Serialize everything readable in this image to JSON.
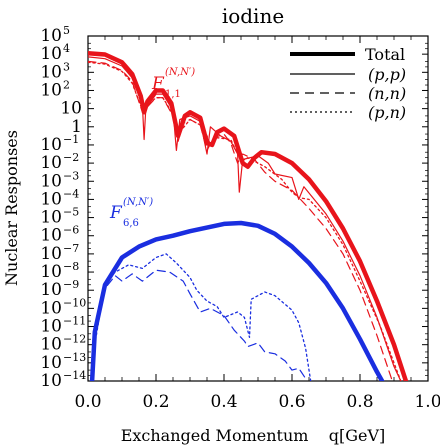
{
  "chart_data": {
    "type": "line",
    "title": "iodine",
    "xlabel": "Exchanged Momentum    q[GeV]",
    "ylabel": "Nuclear Responses",
    "xlim": [
      0.0,
      1.0
    ],
    "ylim_log10": [
      -14,
      5
    ],
    "y_scale": "log",
    "x_ticks": [
      "0.0",
      "0.2",
      "0.4",
      "0.6",
      "0.8",
      "1.0"
    ],
    "y_ticks": [
      {
        "base": "10",
        "exp": "5"
      },
      {
        "base": "10",
        "exp": "4"
      },
      {
        "base": "10",
        "exp": "3"
      },
      {
        "base": "10",
        "exp": "2"
      },
      {
        "base": "10",
        "exp": ""
      },
      {
        "base": "1",
        "exp": ""
      },
      {
        "base": "10",
        "exp": "−1"
      },
      {
        "base": "10",
        "exp": "−2"
      },
      {
        "base": "10",
        "exp": "−3"
      },
      {
        "base": "10",
        "exp": "−4"
      },
      {
        "base": "10",
        "exp": "−5"
      },
      {
        "base": "10",
        "exp": "−6"
      },
      {
        "base": "10",
        "exp": "−7"
      },
      {
        "base": "10",
        "exp": "−8"
      },
      {
        "base": "10",
        "exp": "−9"
      },
      {
        "base": "10",
        "exp": "−10"
      },
      {
        "base": "10",
        "exp": "−11"
      },
      {
        "base": "10",
        "exp": "−12"
      },
      {
        "base": "10",
        "exp": "−13"
      },
      {
        "base": "10",
        "exp": "−14"
      }
    ],
    "legend": {
      "position": "top-right",
      "entries": [
        {
          "label": "Total",
          "style": "solid-thick"
        },
        {
          "label": "(p,p)",
          "style": "solid-thin"
        },
        {
          "label": "(n,n)",
          "style": "dashed"
        },
        {
          "label": "(p,n)",
          "style": "dotted"
        }
      ]
    },
    "annotations": [
      {
        "main": "F",
        "sub": "1,1",
        "sup": "(N,N′)",
        "color": "#e8141b"
      },
      {
        "main": "F",
        "sub": "6,6",
        "sup": "(N,N′)",
        "color": "#1a2ee0"
      }
    ],
    "colors": {
      "F11": "#e8141b",
      "F66": "#1a2ee0",
      "legend": "#000000"
    },
    "series": [
      {
        "group": "F11",
        "style": "solid-thick",
        "points_log10": [
          [
            0.0,
            4.05
          ],
          [
            0.05,
            3.98
          ],
          [
            0.1,
            3.55
          ],
          [
            0.13,
            2.9
          ],
          [
            0.155,
            1.7
          ],
          [
            0.165,
            0.8
          ],
          [
            0.175,
            1.4
          ],
          [
            0.2,
            2.0
          ],
          [
            0.22,
            2.0
          ],
          [
            0.245,
            1.3
          ],
          [
            0.265,
            -0.5
          ],
          [
            0.285,
            0.6
          ],
          [
            0.3,
            0.8
          ],
          [
            0.33,
            0.5
          ],
          [
            0.35,
            -0.9
          ],
          [
            0.365,
            -1.0
          ],
          [
            0.38,
            -0.3
          ],
          [
            0.4,
            -0.1
          ],
          [
            0.43,
            -0.5
          ],
          [
            0.455,
            -2.0
          ],
          [
            0.47,
            -2.2
          ],
          [
            0.49,
            -1.7
          ],
          [
            0.51,
            -1.4
          ],
          [
            0.55,
            -1.5
          ],
          [
            0.6,
            -2.0
          ],
          [
            0.65,
            -2.9
          ],
          [
            0.7,
            -4.1
          ],
          [
            0.75,
            -5.6
          ],
          [
            0.8,
            -7.4
          ],
          [
            0.85,
            -9.6
          ],
          [
            0.9,
            -12.0
          ],
          [
            0.935,
            -14.0
          ]
        ]
      },
      {
        "group": "F11",
        "style": "solid-thin",
        "points_log10": [
          [
            0.0,
            3.85
          ],
          [
            0.05,
            3.75
          ],
          [
            0.1,
            3.35
          ],
          [
            0.13,
            2.7
          ],
          [
            0.16,
            1.2
          ],
          [
            0.165,
            -0.7
          ],
          [
            0.17,
            1.0
          ],
          [
            0.2,
            1.8
          ],
          [
            0.22,
            1.8
          ],
          [
            0.25,
            0.9
          ],
          [
            0.26,
            -1.3
          ],
          [
            0.27,
            0.4
          ],
          [
            0.3,
            0.6
          ],
          [
            0.33,
            0.3
          ],
          [
            0.35,
            -1.5
          ],
          [
            0.36,
            0.0
          ],
          [
            0.39,
            -0.5
          ],
          [
            0.42,
            -0.8
          ],
          [
            0.44,
            -1.5
          ],
          [
            0.445,
            -3.6
          ],
          [
            0.455,
            -1.8
          ],
          [
            0.5,
            -1.6
          ],
          [
            0.53,
            -2.0
          ],
          [
            0.55,
            -2.6
          ],
          [
            0.6,
            -2.8
          ],
          [
            0.62,
            -4.0
          ],
          [
            0.635,
            -3.3
          ],
          [
            0.7,
            -4.8
          ],
          [
            0.75,
            -6.3
          ],
          [
            0.8,
            -8.2
          ],
          [
            0.85,
            -10.5
          ],
          [
            0.9,
            -13.2
          ],
          [
            0.92,
            -14.0
          ]
        ]
      },
      {
        "group": "F11",
        "style": "dashed",
        "points_log10": [
          [
            0.0,
            3.6
          ],
          [
            0.05,
            3.5
          ],
          [
            0.1,
            3.1
          ],
          [
            0.13,
            2.5
          ],
          [
            0.16,
            0.8
          ],
          [
            0.17,
            1.0
          ],
          [
            0.2,
            1.6
          ],
          [
            0.22,
            1.6
          ],
          [
            0.25,
            0.6
          ],
          [
            0.265,
            -0.8
          ],
          [
            0.28,
            0.2
          ],
          [
            0.3,
            0.4
          ],
          [
            0.33,
            0.1
          ],
          [
            0.35,
            -1.3
          ],
          [
            0.37,
            -0.6
          ],
          [
            0.4,
            -0.4
          ],
          [
            0.42,
            -0.9
          ],
          [
            0.44,
            -2.0
          ],
          [
            0.455,
            -1.5
          ],
          [
            0.49,
            -1.8
          ],
          [
            0.52,
            -2.5
          ],
          [
            0.55,
            -3.0
          ],
          [
            0.6,
            -3.5
          ],
          [
            0.65,
            -4.5
          ],
          [
            0.7,
            -5.6
          ],
          [
            0.75,
            -7.0
          ],
          [
            0.8,
            -9.0
          ],
          [
            0.85,
            -11.5
          ],
          [
            0.895,
            -14.0
          ]
        ]
      },
      {
        "group": "F11",
        "style": "dotted",
        "points_log10": [
          [
            0.0,
            3.55
          ],
          [
            0.05,
            3.45
          ],
          [
            0.1,
            3.05
          ],
          [
            0.13,
            2.4
          ],
          [
            0.16,
            0.9
          ],
          [
            0.17,
            1.1
          ],
          [
            0.2,
            1.6
          ],
          [
            0.22,
            1.6
          ],
          [
            0.25,
            0.7
          ],
          [
            0.27,
            -0.3
          ],
          [
            0.3,
            0.4
          ],
          [
            0.34,
            0.0
          ],
          [
            0.36,
            -1.0
          ],
          [
            0.38,
            -0.6
          ],
          [
            0.42,
            -0.7
          ],
          [
            0.45,
            -1.9
          ],
          [
            0.47,
            -1.7
          ],
          [
            0.52,
            -2.2
          ],
          [
            0.57,
            -2.9
          ],
          [
            0.6,
            -3.6
          ],
          [
            0.62,
            -3.9
          ],
          [
            0.65,
            -4.0
          ],
          [
            0.7,
            -5.0
          ],
          [
            0.75,
            -6.5
          ],
          [
            0.8,
            -8.5
          ],
          [
            0.86,
            -11.0
          ],
          [
            0.92,
            -14.0
          ]
        ]
      },
      {
        "group": "F66",
        "style": "solid-thick",
        "points_log10": [
          [
            0.012,
            -14.0
          ],
          [
            0.02,
            -11.3
          ],
          [
            0.05,
            -8.7
          ],
          [
            0.1,
            -7.2
          ],
          [
            0.15,
            -6.6
          ],
          [
            0.2,
            -6.2
          ],
          [
            0.25,
            -6.0
          ],
          [
            0.3,
            -5.75
          ],
          [
            0.35,
            -5.55
          ],
          [
            0.4,
            -5.35
          ],
          [
            0.45,
            -5.3
          ],
          [
            0.5,
            -5.45
          ],
          [
            0.55,
            -5.9
          ],
          [
            0.6,
            -6.6
          ],
          [
            0.65,
            -7.5
          ],
          [
            0.7,
            -8.6
          ],
          [
            0.75,
            -10.0
          ],
          [
            0.8,
            -11.7
          ],
          [
            0.85,
            -13.5
          ],
          [
            0.865,
            -14.0
          ]
        ]
      },
      {
        "group": "F66",
        "style": "dashed",
        "points_log10": [
          [
            0.02,
            -11.5
          ],
          [
            0.05,
            -8.9
          ],
          [
            0.08,
            -8.2
          ],
          [
            0.1,
            -8.5
          ],
          [
            0.13,
            -8.1
          ],
          [
            0.16,
            -8.5
          ],
          [
            0.2,
            -7.9
          ],
          [
            0.24,
            -8.0
          ],
          [
            0.28,
            -8.5
          ],
          [
            0.3,
            -9.2
          ],
          [
            0.33,
            -10.2
          ],
          [
            0.36,
            -10.0
          ],
          [
            0.4,
            -10.4
          ],
          [
            0.43,
            -11.2
          ],
          [
            0.46,
            -11.8
          ],
          [
            0.47,
            -12.1
          ],
          [
            0.5,
            -11.9
          ],
          [
            0.52,
            -12.4
          ],
          [
            0.55,
            -12.5
          ],
          [
            0.58,
            -12.9
          ],
          [
            0.6,
            -13.4
          ],
          [
            0.62,
            -13.3
          ],
          [
            0.645,
            -14.0
          ]
        ]
      },
      {
        "group": "F66",
        "style": "dotted",
        "points_log10": [
          [
            0.02,
            -12.0
          ],
          [
            0.05,
            -8.6
          ],
          [
            0.08,
            -8.0
          ],
          [
            0.12,
            -7.6
          ],
          [
            0.16,
            -7.8
          ],
          [
            0.2,
            -7.2
          ],
          [
            0.23,
            -7.0
          ],
          [
            0.26,
            -7.5
          ],
          [
            0.3,
            -8.3
          ],
          [
            0.32,
            -9.0
          ],
          [
            0.35,
            -9.6
          ],
          [
            0.38,
            -9.9
          ],
          [
            0.4,
            -10.5
          ],
          [
            0.44,
            -10.2
          ],
          [
            0.46,
            -10.5
          ],
          [
            0.475,
            -11.6
          ],
          [
            0.48,
            -9.5
          ],
          [
            0.52,
            -9.1
          ],
          [
            0.55,
            -9.3
          ],
          [
            0.6,
            -10.1
          ],
          [
            0.62,
            -10.8
          ],
          [
            0.64,
            -12.2
          ],
          [
            0.655,
            -14.0
          ]
        ]
      }
    ]
  }
}
